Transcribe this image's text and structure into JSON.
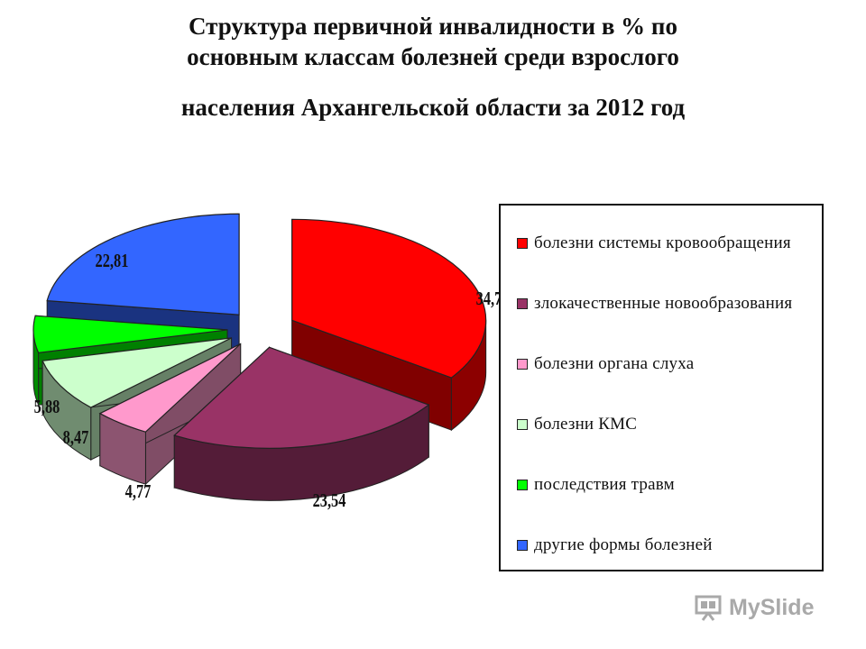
{
  "title": {
    "line1": "Структура первичной инвалидности  в % по",
    "line2": "основным классам болезней среди взрослого",
    "line3": "населения Архангельской области  за  2012 год"
  },
  "chart_data": {
    "type": "pie",
    "title": "Структура первичной инвалидности  в % по основным классам болезней среди взрослого населения Архангельской области  за  2012 год",
    "legend_position": "right",
    "slices": [
      {
        "label": "болезни системы кровообращения",
        "value": 34.7,
        "value_label": "34,7",
        "color": "#ff0000"
      },
      {
        "label": "злокачественные новообразования",
        "value": 23.54,
        "value_label": "23,54",
        "color": "#993366"
      },
      {
        "label": "болезни органа слуха",
        "value": 4.77,
        "value_label": "4,77",
        "color": "#ff99cc"
      },
      {
        "label": "болезни КМС",
        "value": 8.47,
        "value_label": "8,47",
        "color": "#ccffcc"
      },
      {
        "label": "последствия травм",
        "value": 5.88,
        "value_label": "5,88",
        "color": "#00ff00"
      },
      {
        "label": "другие формы болезней",
        "value": 22.81,
        "value_label": "22,81",
        "color": "#3366ff"
      }
    ]
  },
  "watermark": {
    "text": "MySlide",
    "icon": "presentation-icon"
  }
}
